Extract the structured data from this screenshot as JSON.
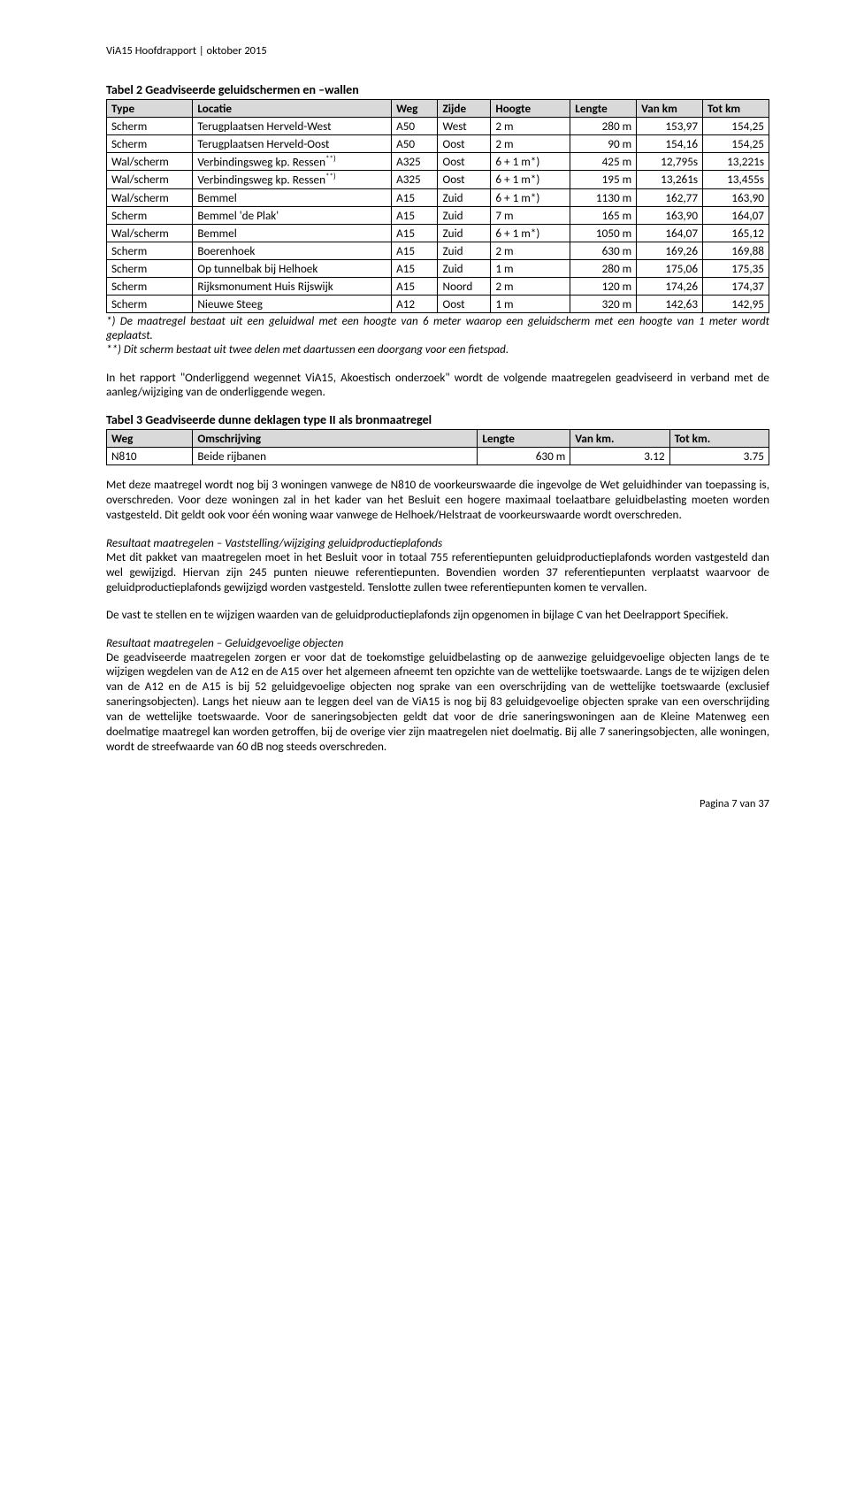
{
  "header": "ViA15 Hoofdrapport | oktober 2015",
  "footer": "Pagina 7 van 37",
  "table2": {
    "title": "Tabel 2 Geadviseerde geluidschermen en –wallen",
    "cols": [
      "Type",
      "Locatie",
      "Weg",
      "Zijde",
      "Hoogte",
      "Lengte",
      "Van km",
      "Tot km"
    ],
    "rows": [
      [
        "Scherm",
        "Terugplaatsen Herveld-West",
        "A50",
        "West",
        "2 m",
        "280 m",
        "153,97",
        "154,25"
      ],
      [
        "Scherm",
        "Terugplaatsen Herveld-Oost",
        "A50",
        "Oost",
        "2 m",
        "90 m",
        "154,16",
        "154,25"
      ],
      [
        "Wal/scherm",
        "Verbindingsweg kp. Ressen",
        "A325",
        "Oost",
        "6 + 1 m*)",
        "425 m",
        "12,795s",
        "13,221s"
      ],
      [
        "Wal/scherm",
        "Verbindingsweg kp. Ressen",
        "A325",
        "Oost",
        "6 + 1 m*)",
        "195 m",
        "13,261s",
        "13,455s"
      ],
      [
        "Wal/scherm",
        "Bemmel",
        "A15",
        "Zuid",
        "6 + 1 m*)",
        "1130 m",
        "162,77",
        "163,90"
      ],
      [
        "Scherm",
        "Bemmel 'de Plak'",
        "A15",
        "Zuid",
        "7 m",
        "165 m",
        "163,90",
        "164,07"
      ],
      [
        "Wal/scherm",
        "Bemmel",
        "A15",
        "Zuid",
        "6 + 1 m*)",
        "1050 m",
        "164,07",
        "165,12"
      ],
      [
        "Scherm",
        "Boerenhoek",
        "A15",
        "Zuid",
        "2 m",
        "630 m",
        "169,26",
        "169,88"
      ],
      [
        "Scherm",
        "Op tunnelbak bij Helhoek",
        "A15",
        "Zuid",
        "1 m",
        "280 m",
        "175,06",
        "175,35"
      ],
      [
        "Scherm",
        "Rijksmonument Huis Rijswijk",
        "A15",
        "Noord",
        "2 m",
        "120 m",
        "174,26",
        "174,37"
      ],
      [
        "Scherm",
        "Nieuwe Steeg",
        "A12",
        "Oost",
        "1 m",
        "320 m",
        "142,63",
        "142,95"
      ]
    ],
    "ressen_sup_rows": [
      2,
      3
    ],
    "footnote1": "*) De maatregel bestaat uit een geluidwal met een hoogte van 6 meter waarop een geluidscherm met een hoogte van 1 meter wordt geplaatst.",
    "footnote2": "**) Dit scherm bestaat uit twee delen met daartussen een doorgang voor een fietspad."
  },
  "para1": "In het rapport \"Onderliggend wegennet ViA15, Akoestisch onderzoek\" wordt de volgende maatregelen geadviseerd in verband met de aanleg/wijziging van de onderliggende wegen.",
  "table3": {
    "title": "Tabel 3 Geadviseerde dunne deklagen type II als bronmaatregel",
    "cols": [
      "Weg",
      "Omschrijving",
      "Lengte",
      "Van km.",
      "Tot km."
    ],
    "rows": [
      [
        "N810",
        "Beide rijbanen",
        "630 m",
        "3.12",
        "3.75"
      ]
    ]
  },
  "para2": "Met deze maatregel wordt nog bij 3 woningen vanwege de N810 de voorkeurswaarde die ingevolge de Wet geluidhinder van toepassing is, overschreden. Voor deze woningen zal in het kader van het Besluit een hogere maximaal toelaatbare geluidbelasting moeten worden vastgesteld. Dit geldt ook voor één woning waar vanwege de Helhoek/Helstraat de voorkeurswaarde wordt overschreden.",
  "sub3": "Resultaat maatregelen – Vaststelling/wijziging geluidproductieplafonds",
  "para3": "Met dit pakket van maatregelen moet in het Besluit voor in totaal 755 referentiepunten geluidproductieplafonds worden vastgesteld dan wel gewijzigd. Hiervan zijn 245 punten nieuwe referentiepunten. Bovendien worden 37 referentiepunten verplaatst waarvoor de geluidproductieplafonds gewijzigd worden vastgesteld. Tenslotte zullen twee referentiepunten komen te vervallen.",
  "para4": "De vast te stellen en te wijzigen waarden van de geluidproductieplafonds zijn opgenomen in bijlage C van het Deelrapport Specifiek.",
  "sub5": "Resultaat maatregelen – Geluidgevoelige objecten",
  "para5": "De geadviseerde maatregelen zorgen er voor dat de toekomstige geluidbelasting op de aanwezige geluidgevoelige objecten langs de te wijzigen wegdelen van de A12 en de A15 over het algemeen afneemt ten opzichte van de wettelijke toetswaarde. Langs de te wijzigen delen van de A12 en de A15 is bij 52 geluidgevoelige objecten nog sprake van een overschrijding van de wettelijke toetswaarde (exclusief saneringsobjecten). Langs het nieuw aan te leggen deel van de ViA15 is nog bij 83 geluidgevoelige objecten sprake van een overschrijding van de wettelijke toetswaarde. Voor de saneringsobjecten geldt dat voor de drie saneringswoningen aan de Kleine Matenweg een doelmatige maatregel kan worden getroffen, bij de overige vier zijn maatregelen niet doelmatig. Bij alle 7 saneringsobjecten, alle woningen, wordt de streefwaarde van 60 dB nog steeds overschreden.",
  "colwidths": {
    "t2": [
      "13%",
      "30%",
      "7%",
      "8%",
      "12%",
      "10%",
      "10%",
      "10%"
    ],
    "t3": [
      "13%",
      "43%",
      "14%",
      "15%",
      "15%"
    ]
  }
}
